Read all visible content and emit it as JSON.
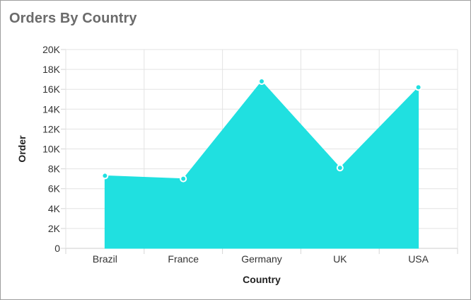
{
  "chart_data": {
    "type": "area",
    "title": "Orders By Country",
    "xlabel": "Country",
    "ylabel": "Order",
    "categories": [
      "Brazil",
      "France",
      "Germany",
      "UK",
      "USA"
    ],
    "values": [
      7300,
      7000,
      16800,
      8100,
      16200
    ],
    "ylim": [
      0,
      20000
    ],
    "y_ticks": [
      0,
      2000,
      4000,
      6000,
      8000,
      10000,
      12000,
      14000,
      16000,
      18000,
      20000
    ],
    "y_tick_labels": [
      "0",
      "2K",
      "4K",
      "6K",
      "8K",
      "10K",
      "12K",
      "14K",
      "16K",
      "18K",
      "20K"
    ],
    "grid": true,
    "legend": "none",
    "color": "#20e0e0",
    "marker_border": "#ffffff"
  }
}
